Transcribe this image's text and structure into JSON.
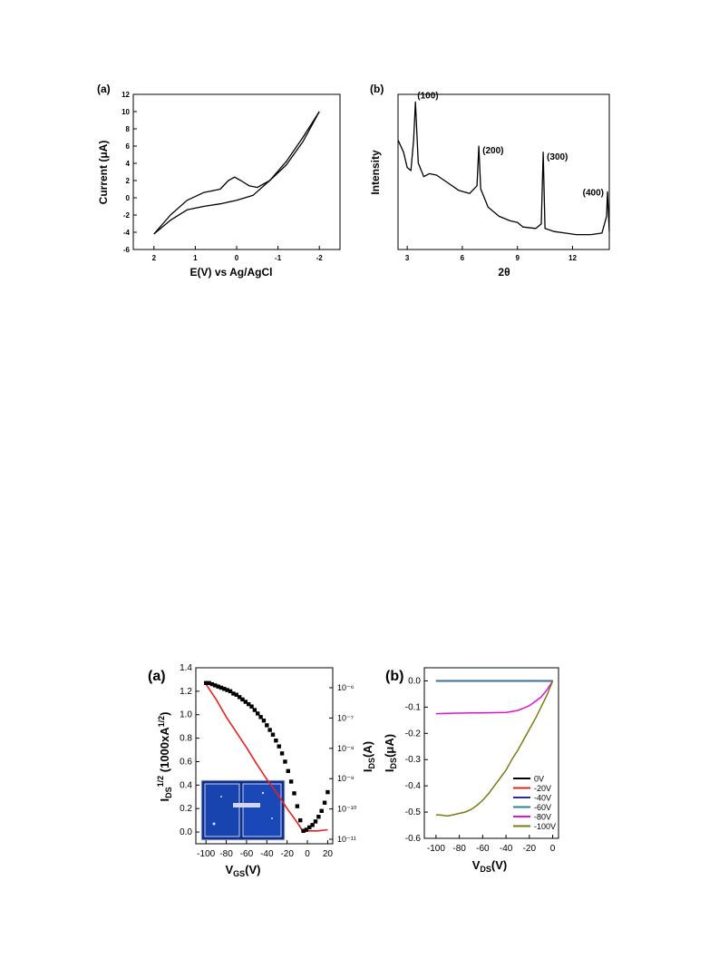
{
  "figures": {
    "top_a": {
      "panel_label": "(a)",
      "xlabel": "E(V) vs Ag/AgCl",
      "ylabel": "Current (μA)"
    },
    "top_b": {
      "panel_label": "(b)",
      "xlabel": "2θ",
      "ylabel": "Intensity",
      "peak_labels": [
        "(100)",
        "(200)",
        "(300)",
        "(400)"
      ]
    },
    "bottom_a": {
      "panel_label": "(a)",
      "xlabel_main": "V",
      "xlabel_sub": "GS",
      "xlabel_tail": "(V)",
      "ylabel_left_main": "I",
      "ylabel_left_sub": "DS",
      "ylabel_left_sup": "1/2",
      "ylabel_left_tail": " (1000xA",
      "ylabel_left_tail_sup": "1/2",
      "ylabel_left_end": ")",
      "ylabel_right_main": "I",
      "ylabel_right_sub": "DS",
      "ylabel_right_tail": "(A)",
      "inset": "substrate-photo"
    },
    "bottom_b": {
      "panel_label": "(b)",
      "xlabel_main": "V",
      "xlabel_sub": "DS",
      "xlabel_tail": "(V)",
      "ylabel_main": "I",
      "ylabel_sub": "DS",
      "ylabel_tail": "(μA)"
    }
  },
  "chart_data": [
    {
      "id": "top_a",
      "type": "line",
      "xlabel": "E(V) vs Ag/AgCl",
      "ylabel": "Current (μA)",
      "xlim": [
        2.5,
        -2.5
      ],
      "ylim": [
        -6,
        12
      ],
      "x_ticks": [
        2,
        1,
        0,
        -1,
        -2
      ],
      "y_ticks": [
        -6,
        -4,
        -2,
        0,
        2,
        4,
        6,
        8,
        10,
        12
      ],
      "series": [
        {
          "values": [
            [
              2,
              -4.2
            ],
            [
              1.6,
              -2.6
            ],
            [
              1.2,
              -1.4
            ],
            [
              0.8,
              -1.0
            ],
            [
              0.4,
              -0.7
            ],
            [
              0,
              -0.3
            ],
            [
              -0.4,
              0.3
            ],
            [
              -0.8,
              2.0
            ],
            [
              -1.2,
              4.2
            ],
            [
              -1.6,
              7.0
            ],
            [
              -2.0,
              10.0
            ]
          ]
        },
        {
          "values": [
            [
              -2.0,
              10.0
            ],
            [
              -1.6,
              6.5
            ],
            [
              -1.2,
              3.8
            ],
            [
              -0.8,
              2.0
            ],
            [
              -0.5,
              1.2
            ],
            [
              -0.3,
              1.4
            ],
            [
              -0.1,
              2.0
            ],
            [
              0.05,
              2.4
            ],
            [
              0.2,
              2.0
            ],
            [
              0.4,
              1.0
            ],
            [
              0.8,
              0.6
            ],
            [
              1.2,
              -0.3
            ],
            [
              1.6,
              -2.0
            ],
            [
              2.0,
              -4.2
            ]
          ]
        }
      ]
    },
    {
      "id": "top_b",
      "type": "line",
      "xlabel": "2θ",
      "ylabel": "Intensity",
      "xlim": [
        2.5,
        14
      ],
      "x_ticks": [
        3,
        6,
        9,
        12
      ],
      "y_ticks_shown": false,
      "peaks": [
        {
          "label": "(100)",
          "x": 3.4
        },
        {
          "label": "(200)",
          "x": 6.9
        },
        {
          "label": "(300)",
          "x": 10.4
        },
        {
          "label": "(400)",
          "x": 13.9
        }
      ],
      "series": [
        {
          "values": [
            [
              2.5,
              0.7
            ],
            [
              2.8,
              0.62
            ],
            [
              3.0,
              0.52
            ],
            [
              3.2,
              0.5
            ],
            [
              3.35,
              0.7
            ],
            [
              3.45,
              0.95
            ],
            [
              3.6,
              0.55
            ],
            [
              3.9,
              0.46
            ],
            [
              4.2,
              0.48
            ],
            [
              4.6,
              0.47
            ],
            [
              5.2,
              0.42
            ],
            [
              5.8,
              0.37
            ],
            [
              6.4,
              0.35
            ],
            [
              6.8,
              0.4
            ],
            [
              6.9,
              0.66
            ],
            [
              7.0,
              0.38
            ],
            [
              7.4,
              0.26
            ],
            [
              8.0,
              0.2
            ],
            [
              8.6,
              0.17
            ],
            [
              9.0,
              0.16
            ],
            [
              9.3,
              0.13
            ],
            [
              10.0,
              0.12
            ],
            [
              10.3,
              0.15
            ],
            [
              10.4,
              0.62
            ],
            [
              10.5,
              0.12
            ],
            [
              11.0,
              0.1
            ],
            [
              11.6,
              0.09
            ],
            [
              12.2,
              0.08
            ],
            [
              13.0,
              0.08
            ],
            [
              13.6,
              0.09
            ],
            [
              13.85,
              0.2
            ],
            [
              13.9,
              0.36
            ],
            [
              14.0,
              0.1
            ]
          ]
        }
      ]
    },
    {
      "id": "bottom_a",
      "type": "scatter",
      "xlabel": "VGS(V)",
      "ylabel_left": "IDS1/2 (1000xA1/2)",
      "ylabel_right": "IDS(A)",
      "xlim": [
        -110,
        25
      ],
      "ylim": [
        -0.1,
        1.4
      ],
      "x_ticks": [
        -100,
        -80,
        -60,
        -40,
        -20,
        0,
        20
      ],
      "y_ticks": [
        0.0,
        0.2,
        0.4,
        0.6,
        0.8,
        1.0,
        1.2,
        1.4
      ],
      "y_ticks_right": [
        "10⁻¹¹",
        "10⁻¹⁰",
        "10⁻⁹",
        "10⁻⁸",
        "10⁻⁷",
        "10⁻⁶"
      ],
      "series": [
        {
          "name": "",
          "marker": "square",
          "color": "#000000",
          "values": [
            [
              -100,
              1.27
            ],
            [
              -97,
              1.27
            ],
            [
              -94,
              1.26
            ],
            [
              -91,
              1.25
            ],
            [
              -88,
              1.24
            ],
            [
              -85,
              1.23
            ],
            [
              -82,
              1.22
            ],
            [
              -79,
              1.21
            ],
            [
              -76,
              1.2
            ],
            [
              -73,
              1.18
            ],
            [
              -70,
              1.17
            ],
            [
              -67,
              1.15
            ],
            [
              -64,
              1.13
            ],
            [
              -61,
              1.11
            ],
            [
              -58,
              1.09
            ],
            [
              -55,
              1.07
            ],
            [
              -52,
              1.04
            ],
            [
              -49,
              1.01
            ],
            [
              -46,
              0.98
            ],
            [
              -43,
              0.95
            ],
            [
              -40,
              0.91
            ],
            [
              -37,
              0.87
            ],
            [
              -34,
              0.83
            ],
            [
              -31,
              0.78
            ],
            [
              -28,
              0.73
            ],
            [
              -25,
              0.67
            ],
            [
              -22,
              0.6
            ],
            [
              -19,
              0.52
            ],
            [
              -16,
              0.43
            ],
            [
              -13,
              0.33
            ],
            [
              -10,
              0.22
            ],
            [
              -7,
              0.1
            ],
            [
              -4,
              0.01
            ],
            [
              -1,
              0.02
            ],
            [
              2,
              0.04
            ],
            [
              5,
              0.06
            ],
            [
              8,
              0.09
            ],
            [
              11,
              0.13
            ],
            [
              14,
              0.18
            ],
            [
              17,
              0.25
            ],
            [
              20,
              0.34
            ]
          ]
        },
        {
          "name": "",
          "marker": "line",
          "color": "#e8201c",
          "values": [
            [
              -100,
              1.26
            ],
            [
              -90,
              1.13
            ],
            [
              -80,
              0.98
            ],
            [
              -70,
              0.85
            ],
            [
              -60,
              0.72
            ],
            [
              -50,
              0.58
            ],
            [
              -40,
              0.45
            ],
            [
              -30,
              0.33
            ],
            [
              -20,
              0.2
            ],
            [
              -10,
              0.08
            ],
            [
              -4,
              0.0
            ],
            [
              0,
              0.01
            ],
            [
              10,
              0.01
            ],
            [
              20,
              0.02
            ]
          ]
        }
      ]
    },
    {
      "id": "bottom_b",
      "type": "line",
      "xlabel": "VDS(V)",
      "ylabel": "IDS(μA)",
      "xlim": [
        -110,
        5
      ],
      "ylim": [
        -0.6,
        0.05
      ],
      "x_ticks": [
        -100,
        -80,
        -60,
        -40,
        -20,
        0
      ],
      "y_ticks": [
        0.0,
        -0.1,
        -0.2,
        -0.3,
        -0.4,
        -0.5,
        -0.6
      ],
      "legend_position": "bottom-right",
      "series": [
        {
          "name": "0V",
          "color": "#000000",
          "values": [
            [
              -100,
              0
            ],
            [
              -80,
              0
            ],
            [
              -60,
              0
            ],
            [
              -40,
              0
            ],
            [
              -20,
              0
            ],
            [
              0,
              0
            ]
          ]
        },
        {
          "name": "-20V",
          "color": "#e8201c",
          "values": [
            [
              -100,
              0
            ],
            [
              -80,
              0
            ],
            [
              -60,
              0
            ],
            [
              -40,
              0
            ],
            [
              -20,
              0
            ],
            [
              0,
              0
            ]
          ]
        },
        {
          "name": "-40V",
          "color": "#2a2aa8",
          "values": [
            [
              -100,
              0
            ],
            [
              -80,
              0
            ],
            [
              -60,
              0
            ],
            [
              -40,
              0
            ],
            [
              -20,
              0
            ],
            [
              0,
              0
            ]
          ]
        },
        {
          "name": "-60V",
          "color": "#2c7fa0",
          "values": [
            [
              -100,
              0
            ],
            [
              -80,
              0
            ],
            [
              -60,
              0
            ],
            [
              -40,
              0
            ],
            [
              -20,
              0
            ],
            [
              0,
              0
            ]
          ]
        },
        {
          "name": "-80V",
          "color": "#e010e0",
          "values": [
            [
              -100,
              -0.125
            ],
            [
              -90,
              -0.124
            ],
            [
              -80,
              -0.123
            ],
            [
              -70,
              -0.122
            ],
            [
              -60,
              -0.122
            ],
            [
              -50,
              -0.121
            ],
            [
              -40,
              -0.12
            ],
            [
              -30,
              -0.113
            ],
            [
              -20,
              -0.095
            ],
            [
              -10,
              -0.062
            ],
            [
              -5,
              -0.035
            ],
            [
              0,
              0
            ]
          ]
        },
        {
          "name": "-100V",
          "color": "#7a7a16",
          "values": [
            [
              -100,
              -0.51
            ],
            [
              -95,
              -0.512
            ],
            [
              -90,
              -0.515
            ],
            [
              -85,
              -0.51
            ],
            [
              -80,
              -0.505
            ],
            [
              -75,
              -0.5
            ],
            [
              -70,
              -0.49
            ],
            [
              -65,
              -0.475
            ],
            [
              -60,
              -0.455
            ],
            [
              -55,
              -0.43
            ],
            [
              -50,
              -0.4
            ],
            [
              -45,
              -0.37
            ],
            [
              -40,
              -0.34
            ],
            [
              -35,
              -0.3
            ],
            [
              -30,
              -0.265
            ],
            [
              -25,
              -0.225
            ],
            [
              -20,
              -0.185
            ],
            [
              -15,
              -0.145
            ],
            [
              -10,
              -0.1
            ],
            [
              -5,
              -0.055
            ],
            [
              0,
              0
            ]
          ]
        }
      ]
    }
  ]
}
